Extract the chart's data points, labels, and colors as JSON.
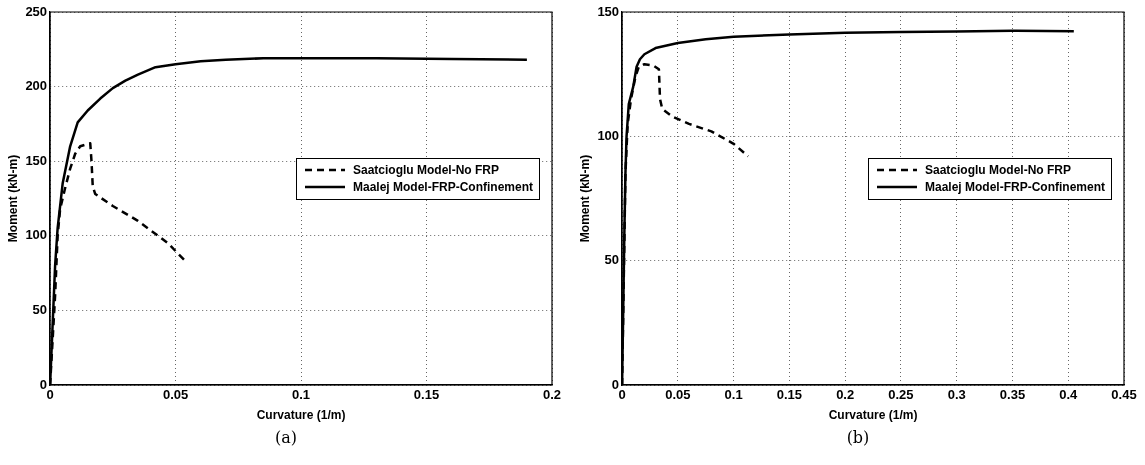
{
  "chart_data": [
    {
      "type": "line",
      "xlabel": "Curvature (1/m)",
      "ylabel": "Moment (kN-m)",
      "annotations": [
        "(a)"
      ],
      "xlim": [
        0,
        0.2
      ],
      "xticks": [
        0,
        0.05,
        0.1,
        0.15,
        0.2
      ],
      "ylim": [
        0,
        250
      ],
      "yticks": [
        0,
        50,
        100,
        150,
        200,
        250
      ],
      "grid": true,
      "legend": "right",
      "marker": "none",
      "series": [
        {
          "name": "Saatcioglu Model-No FRP",
          "color": "#000000",
          "line_style": "dashed",
          "x": [
            0,
            0.002,
            0.003,
            0.004,
            0.006,
            0.008,
            0.01,
            0.012,
            0.016,
            0.0165,
            0.017,
            0.018,
            0.025,
            0.035,
            0.043,
            0.047,
            0.051,
            0.054
          ],
          "values": [
            0,
            60,
            100,
            118,
            132,
            145,
            155,
            160,
            162,
            150,
            133,
            128,
            120,
            110,
            100,
            95,
            88,
            83
          ]
        },
        {
          "name": "Maalej Model-FRP-Confinement",
          "color": "#000000",
          "line_style": "solid",
          "x": [
            0,
            0.002,
            0.003,
            0.005,
            0.008,
            0.011,
            0.015,
            0.02,
            0.025,
            0.03,
            0.035,
            0.042,
            0.05,
            0.06,
            0.07,
            0.085,
            0.1,
            0.13,
            0.16,
            0.19
          ],
          "values": [
            0,
            80,
            105,
            135,
            160,
            176,
            184,
            192,
            199,
            204,
            208,
            213,
            215,
            217,
            218,
            219,
            219,
            219,
            218.5,
            218
          ]
        }
      ]
    },
    {
      "type": "line",
      "xlabel": "Curvature (1/m)",
      "ylabel": "Moment (kN-m)",
      "annotations": [
        "(b)"
      ],
      "xlim": [
        0,
        0.45
      ],
      "xticks": [
        0,
        0.05,
        0.1,
        0.15,
        0.2,
        0.25,
        0.3,
        0.35,
        0.4,
        0.45
      ],
      "ylim": [
        0,
        150
      ],
      "yticks": [
        0,
        50,
        100,
        150
      ],
      "grid": true,
      "legend": "right",
      "marker": "none",
      "series": [
        {
          "name": "Saatcioglu Model-No FRP",
          "color": "#000000",
          "line_style": "dashed",
          "x": [
            0,
            0.003,
            0.005,
            0.008,
            0.012,
            0.015,
            0.02,
            0.028,
            0.033,
            0.034,
            0.036,
            0.045,
            0.06,
            0.08,
            0.1,
            0.113
          ],
          "values": [
            0,
            85,
            105,
            115,
            124,
            128,
            129,
            128.5,
            127,
            115,
            111,
            108,
            105,
            102,
            97,
            92
          ]
        },
        {
          "name": "Maalej Model-FRP-Confinement",
          "color": "#000000",
          "line_style": "solid",
          "x": [
            0,
            0.002,
            0.003,
            0.004,
            0.006,
            0.01,
            0.013,
            0.016,
            0.02,
            0.03,
            0.05,
            0.075,
            0.1,
            0.15,
            0.2,
            0.25,
            0.3,
            0.35,
            0.405
          ],
          "values": [
            0,
            60,
            85,
            100,
            113,
            120,
            128,
            131,
            133,
            135.5,
            137.5,
            139,
            140,
            141,
            141.7,
            142,
            142.2,
            142.5,
            142.3
          ]
        }
      ]
    }
  ]
}
